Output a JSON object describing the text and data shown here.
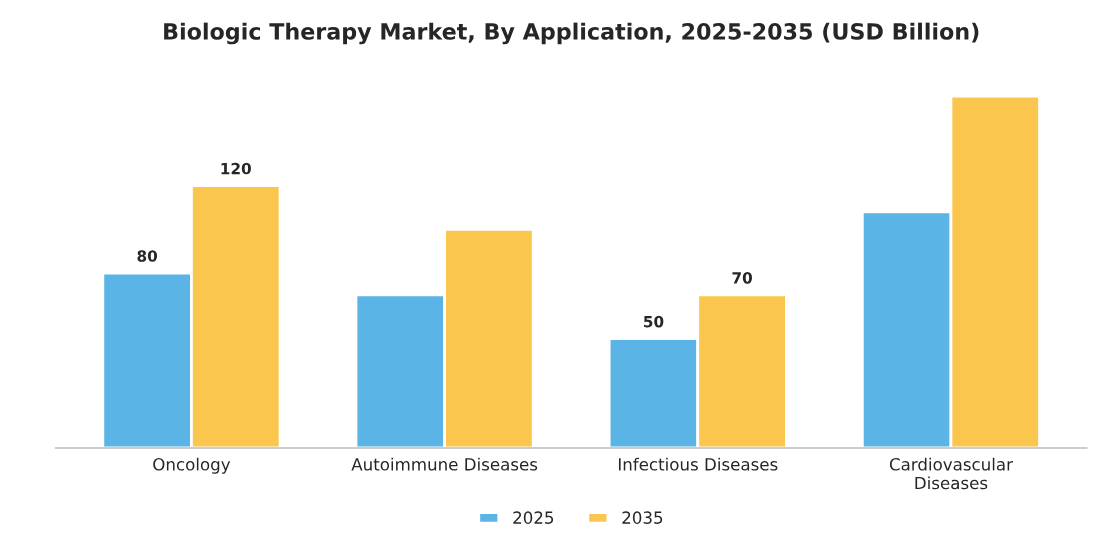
{
  "chart_data": {
    "type": "bar",
    "title": "Biologic Therapy Market, By Application, 2025-2035 (USD Billion)",
    "categories": [
      "Oncology",
      "Autoimmune Diseases",
      "Infectious Diseases",
      "Cardiovascular\nDiseases"
    ],
    "series": [
      {
        "name": "2025",
        "color": "#5ab4e6",
        "values": [
          80,
          70,
          50,
          108
        ],
        "value_labels": [
          "80",
          null,
          "50",
          null
        ]
      },
      {
        "name": "2035",
        "color": "#fbc64e",
        "values": [
          120,
          100,
          70,
          161
        ],
        "value_labels": [
          "120",
          null,
          "70",
          null
        ]
      }
    ],
    "tick_labels": "x",
    "grid": false,
    "legend": "bottom"
  }
}
